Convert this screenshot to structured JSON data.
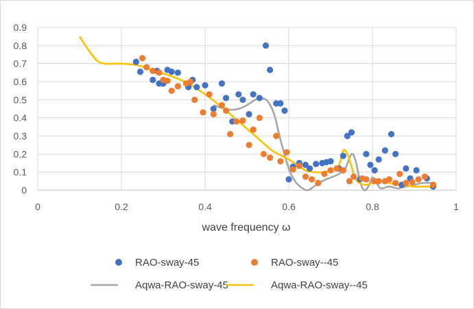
{
  "chart_data": {
    "type": "scatter",
    "title": "",
    "xlabel": "wave frequency ω",
    "ylabel": "",
    "xlim": [
      0,
      1
    ],
    "ylim": [
      0,
      0.9
    ],
    "xticks": [
      "0",
      "0.2",
      "0.4",
      "0.6",
      "0.8",
      "1"
    ],
    "yticks": [
      "0",
      "0.1",
      "0.2",
      "0.3",
      "0.4",
      "0.5",
      "0.6",
      "0.7",
      "0.8",
      "0.9"
    ],
    "grid": "vertical and horizontal",
    "legend_position": "bottom",
    "series": [
      {
        "name": "RAO-sway-45",
        "kind": "scatter",
        "color": "#4472c4",
        "points": [
          [
            0.235,
            0.71
          ],
          [
            0.245,
            0.655
          ],
          [
            0.275,
            0.61
          ],
          [
            0.285,
            0.66
          ],
          [
            0.29,
            0.59
          ],
          [
            0.3,
            0.59
          ],
          [
            0.31,
            0.665
          ],
          [
            0.32,
            0.655
          ],
          [
            0.335,
            0.65
          ],
          [
            0.36,
            0.57
          ],
          [
            0.37,
            0.61
          ],
          [
            0.38,
            0.57
          ],
          [
            0.4,
            0.58
          ],
          [
            0.42,
            0.45
          ],
          [
            0.44,
            0.59
          ],
          [
            0.45,
            0.51
          ],
          [
            0.465,
            0.38
          ],
          [
            0.48,
            0.53
          ],
          [
            0.49,
            0.5
          ],
          [
            0.505,
            0.42
          ],
          [
            0.515,
            0.53
          ],
          [
            0.53,
            0.51
          ],
          [
            0.545,
            0.8
          ],
          [
            0.555,
            0.665
          ],
          [
            0.57,
            0.48
          ],
          [
            0.58,
            0.48
          ],
          [
            0.59,
            0.44
          ],
          [
            0.6,
            0.06
          ],
          [
            0.61,
            0.13
          ],
          [
            0.625,
            0.15
          ],
          [
            0.64,
            0.14
          ],
          [
            0.65,
            0.12
          ],
          [
            0.665,
            0.145
          ],
          [
            0.68,
            0.15
          ],
          [
            0.69,
            0.155
          ],
          [
            0.7,
            0.16
          ],
          [
            0.72,
            0.12
          ],
          [
            0.73,
            0.19
          ],
          [
            0.74,
            0.3
          ],
          [
            0.75,
            0.32
          ],
          [
            0.77,
            0.06
          ],
          [
            0.785,
            0.2
          ],
          [
            0.795,
            0.14
          ],
          [
            0.805,
            0.11
          ],
          [
            0.815,
            0.17
          ],
          [
            0.83,
            0.22
          ],
          [
            0.845,
            0.31
          ],
          [
            0.855,
            0.2
          ],
          [
            0.87,
            0.03
          ],
          [
            0.88,
            0.12
          ],
          [
            0.89,
            0.065
          ],
          [
            0.905,
            0.11
          ],
          [
            0.93,
            0.065
          ],
          [
            0.945,
            0.02
          ]
        ]
      },
      {
        "name": "RAO-sway--45",
        "kind": "scatter",
        "color": "#ed7d31",
        "points": [
          [
            0.25,
            0.73
          ],
          [
            0.26,
            0.68
          ],
          [
            0.275,
            0.66
          ],
          [
            0.29,
            0.65
          ],
          [
            0.3,
            0.61
          ],
          [
            0.31,
            0.605
          ],
          [
            0.32,
            0.55
          ],
          [
            0.335,
            0.575
          ],
          [
            0.355,
            0.59
          ],
          [
            0.365,
            0.6
          ],
          [
            0.375,
            0.5
          ],
          [
            0.395,
            0.43
          ],
          [
            0.41,
            0.53
          ],
          [
            0.42,
            0.42
          ],
          [
            0.44,
            0.47
          ],
          [
            0.45,
            0.44
          ],
          [
            0.46,
            0.31
          ],
          [
            0.475,
            0.38
          ],
          [
            0.49,
            0.385
          ],
          [
            0.505,
            0.25
          ],
          [
            0.515,
            0.335
          ],
          [
            0.53,
            0.4
          ],
          [
            0.54,
            0.2
          ],
          [
            0.555,
            0.18
          ],
          [
            0.57,
            0.3
          ],
          [
            0.58,
            0.16
          ],
          [
            0.595,
            0.21
          ],
          [
            0.61,
            0.115
          ],
          [
            0.625,
            0.135
          ],
          [
            0.64,
            0.075
          ],
          [
            0.655,
            0.06
          ],
          [
            0.67,
            0.04
          ],
          [
            0.685,
            0.09
          ],
          [
            0.7,
            0.11
          ],
          [
            0.715,
            0.12
          ],
          [
            0.73,
            0.11
          ],
          [
            0.745,
            0.05
          ],
          [
            0.755,
            0.075
          ],
          [
            0.775,
            0.065
          ],
          [
            0.785,
            0.06
          ],
          [
            0.805,
            0.05
          ],
          [
            0.815,
            0.05
          ],
          [
            0.83,
            0.05
          ],
          [
            0.84,
            0.06
          ],
          [
            0.855,
            0.04
          ],
          [
            0.865,
            0.09
          ],
          [
            0.88,
            0.04
          ],
          [
            0.895,
            0.045
          ],
          [
            0.91,
            0.06
          ],
          [
            0.925,
            0.075
          ],
          [
            0.945,
            0.03
          ]
        ]
      },
      {
        "name": "Aqwa-RAO-sway-45",
        "kind": "line",
        "color": "#a5a5a5",
        "points": [
          [
            0.42,
            0.47
          ],
          [
            0.44,
            0.455
          ],
          [
            0.46,
            0.445
          ],
          [
            0.48,
            0.45
          ],
          [
            0.5,
            0.47
          ],
          [
            0.52,
            0.5
          ],
          [
            0.535,
            0.51
          ],
          [
            0.55,
            0.49
          ],
          [
            0.565,
            0.42
          ],
          [
            0.58,
            0.28
          ],
          [
            0.6,
            0.12
          ],
          [
            0.615,
            0.05
          ],
          [
            0.63,
            0.015
          ],
          [
            0.645,
            0.0
          ],
          [
            0.66,
            0.02
          ],
          [
            0.68,
            0.05
          ],
          [
            0.7,
            0.07
          ],
          [
            0.72,
            0.09
          ],
          [
            0.735,
            0.12
          ],
          [
            0.75,
            0.2
          ],
          [
            0.76,
            0.16
          ],
          [
            0.77,
            0.05
          ],
          [
            0.78,
            0.0
          ],
          [
            0.79,
            0.02
          ],
          [
            0.8,
            0.07
          ],
          [
            0.81,
            0.04
          ],
          [
            0.82,
            0.01
          ],
          [
            0.84,
            0.02
          ],
          [
            0.86,
            0.01
          ],
          [
            0.88,
            0.02
          ],
          [
            0.9,
            0.03
          ],
          [
            0.92,
            0.04
          ],
          [
            0.94,
            0.04
          ]
        ]
      },
      {
        "name": "Aqwa-RAO-sway--45",
        "kind": "line",
        "color": "#ffc000",
        "points": [
          [
            0.1,
            0.85
          ],
          [
            0.12,
            0.78
          ],
          [
            0.14,
            0.72
          ],
          [
            0.16,
            0.7
          ],
          [
            0.2,
            0.7
          ],
          [
            0.24,
            0.69
          ],
          [
            0.28,
            0.66
          ],
          [
            0.32,
            0.63
          ],
          [
            0.36,
            0.59
          ],
          [
            0.4,
            0.53
          ],
          [
            0.44,
            0.46
          ],
          [
            0.48,
            0.38
          ],
          [
            0.52,
            0.3
          ],
          [
            0.56,
            0.22
          ],
          [
            0.6,
            0.17
          ],
          [
            0.62,
            0.14
          ],
          [
            0.64,
            0.11
          ],
          [
            0.66,
            0.1
          ],
          [
            0.68,
            0.1
          ],
          [
            0.7,
            0.11
          ],
          [
            0.72,
            0.14
          ],
          [
            0.73,
            0.22
          ],
          [
            0.74,
            0.2
          ],
          [
            0.75,
            0.13
          ],
          [
            0.76,
            0.06
          ],
          [
            0.78,
            0.03
          ],
          [
            0.8,
            0.04
          ],
          [
            0.82,
            0.05
          ],
          [
            0.84,
            0.04
          ],
          [
            0.86,
            0.03
          ],
          [
            0.88,
            0.025
          ],
          [
            0.9,
            0.02
          ],
          [
            0.92,
            0.02
          ],
          [
            0.945,
            0.02
          ]
        ]
      }
    ]
  }
}
